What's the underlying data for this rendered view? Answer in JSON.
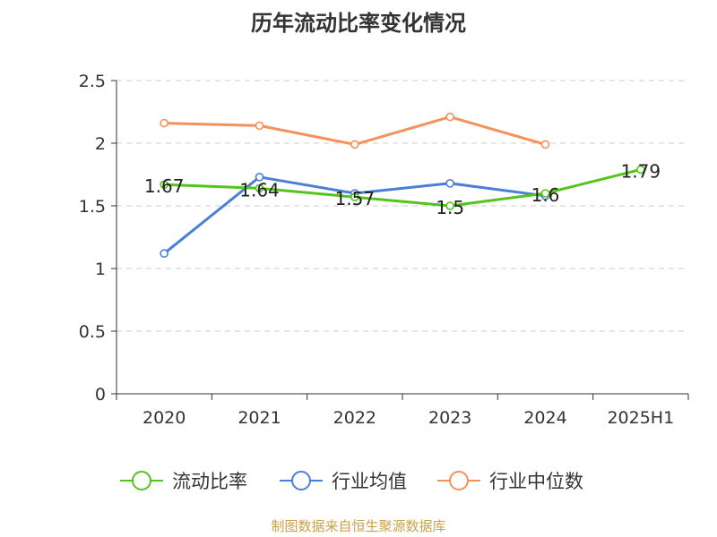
{
  "chart_data": {
    "type": "line",
    "title": "历年流动比率变化情况",
    "categories": [
      "2020",
      "2021",
      "2022",
      "2023",
      "2024",
      "2025H1"
    ],
    "ylim": [
      0,
      2.5
    ],
    "yticks": [
      "0",
      "0.5",
      "1",
      "1.5",
      "2",
      "2.5"
    ],
    "grid": true,
    "legend_position": "bottom",
    "series": [
      {
        "name": "流动比率",
        "color": "#52c41a",
        "values": [
          1.67,
          1.64,
          1.57,
          1.5,
          1.6,
          1.79
        ],
        "labels": [
          "1.67",
          "1.64",
          "1.57",
          "1.5",
          "1.6",
          "1.79"
        ]
      },
      {
        "name": "行业均值",
        "color": "#4a7fd9",
        "values": [
          1.12,
          1.73,
          1.6,
          1.68,
          1.58,
          null
        ]
      },
      {
        "name": "行业中位数",
        "color": "#f5915a",
        "values": [
          2.16,
          2.14,
          1.99,
          2.21,
          1.99,
          null
        ]
      }
    ]
  },
  "source_note": "制图数据来自恒生聚源数据库"
}
